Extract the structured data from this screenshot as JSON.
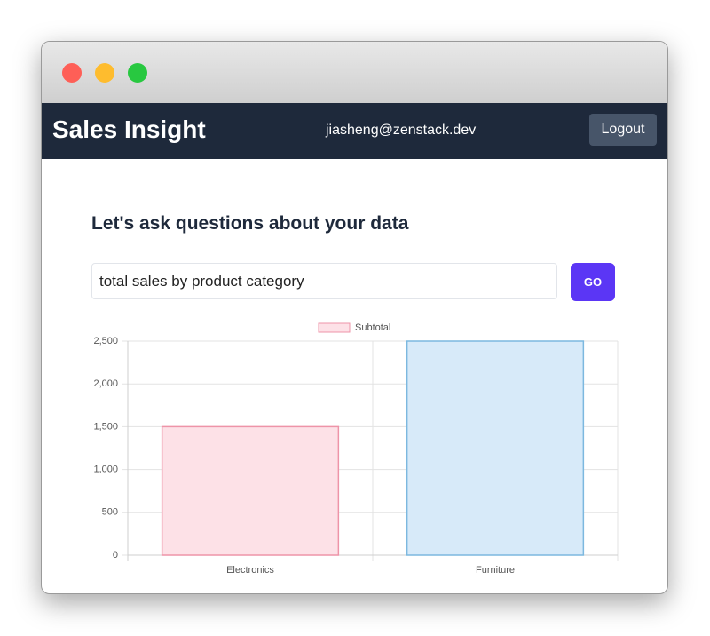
{
  "header": {
    "title": "Sales Insight",
    "user": "jiasheng@zenstack.dev",
    "logout": "Logout"
  },
  "main": {
    "heading": "Let's ask questions about your data",
    "query": "total sales by product category",
    "button": "GO"
  },
  "chart_data": {
    "type": "bar",
    "categories": [
      "Electronics",
      "Furniture"
    ],
    "series": [
      {
        "name": "Subtotal",
        "values": [
          1500,
          2500
        ],
        "colors": [
          "#fde1e7",
          "#d7eaf9"
        ],
        "border_colors": [
          "#ee94a8",
          "#7cb8df"
        ]
      }
    ],
    "ylim": [
      0,
      2500
    ],
    "yticks": [
      0,
      500,
      {
        "value": 1000,
        "label": "1,000"
      },
      {
        "value": 1500,
        "label": "1,500"
      },
      {
        "value": 2000,
        "label": "2,000"
      },
      {
        "value": 2500,
        "label": "2,500"
      }
    ],
    "grid": true
  }
}
